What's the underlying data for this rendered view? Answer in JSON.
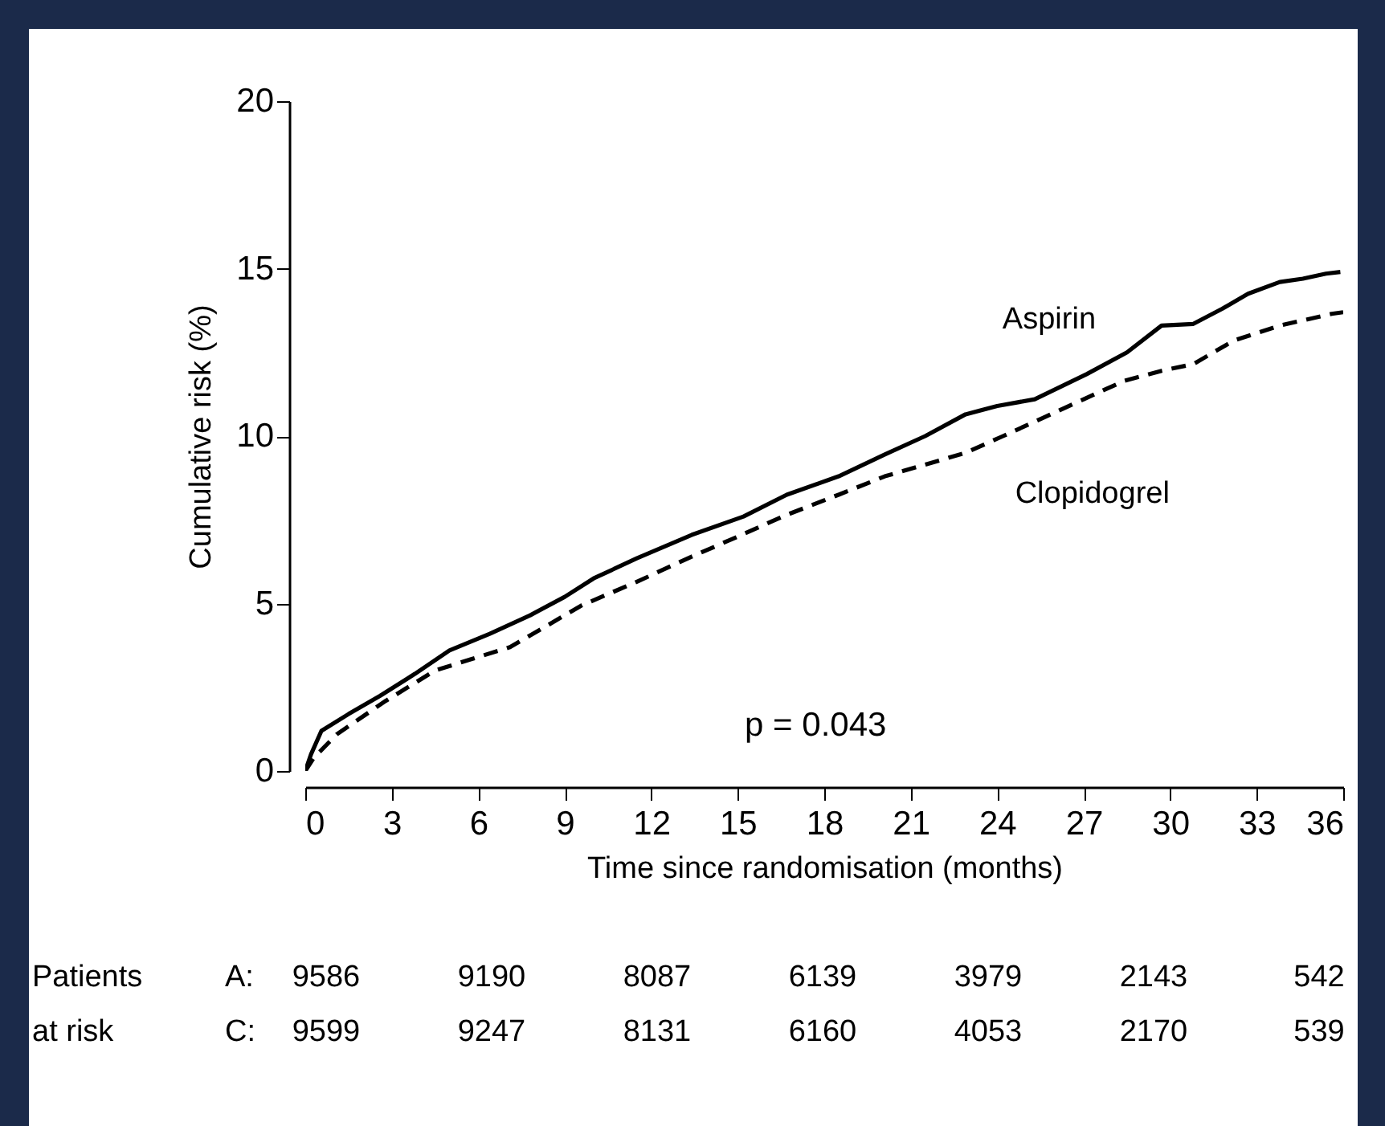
{
  "chart_data": {
    "type": "line",
    "xlabel": "Time since randomisation (months)",
    "ylabel": "Cumulative risk (%)",
    "xlim": [
      0,
      36
    ],
    "xticks": [
      0,
      3,
      6,
      9,
      12,
      15,
      18,
      21,
      24,
      27,
      30,
      33,
      36
    ],
    "ylim": [
      0,
      20
    ],
    "yticks": [
      0,
      5,
      10,
      15,
      20
    ],
    "grid": false,
    "marker": "none",
    "series": [
      {
        "name": "Aspirin",
        "color": "#000000",
        "line_style": "solid",
        "x": [
          0,
          0.2,
          0.56,
          1.5,
          2.6,
          3.8,
          5.0,
          6.4,
          7.8,
          9.0,
          10.0,
          11.5,
          13.4,
          15.2,
          16.7,
          18.5,
          20.1,
          21.5,
          22.9,
          24.0,
          25.3,
          27.1,
          28.5,
          29.7,
          30.8,
          31.8,
          32.7,
          33.8,
          34.6,
          35.4,
          35.9
        ],
        "values": [
          0,
          0.5,
          1.2,
          1.7,
          2.25,
          2.9,
          3.6,
          4.1,
          4.65,
          5.2,
          5.75,
          6.35,
          7.05,
          7.6,
          8.25,
          8.8,
          9.45,
          10.0,
          10.65,
          10.9,
          11.1,
          11.85,
          12.5,
          13.3,
          13.35,
          13.8,
          14.25,
          14.6,
          14.7,
          14.85,
          14.9
        ]
      },
      {
        "name": "Clopidogrel",
        "color": "#000000",
        "line_style": "dashed",
        "x": [
          0,
          0.3,
          1.1,
          2.8,
          4.5,
          5.8,
          7.1,
          8.4,
          9.6,
          11.5,
          13.4,
          15.0,
          16.7,
          18.5,
          20.1,
          21.5,
          22.9,
          24.2,
          25.6,
          27.0,
          28.4,
          29.7,
          30.8,
          32.2,
          33.8,
          35.6,
          36
        ],
        "values": [
          0,
          0.4,
          1.1,
          2.1,
          3.0,
          3.35,
          3.7,
          4.35,
          4.95,
          5.65,
          6.4,
          7.0,
          7.65,
          8.25,
          8.8,
          9.15,
          9.5,
          10.0,
          10.55,
          11.1,
          11.65,
          11.95,
          12.15,
          12.85,
          13.3,
          13.65,
          13.7
        ]
      }
    ],
    "annotations": [
      "p = 0.043",
      "Patients",
      "at risk",
      "A:",
      "9586",
      "9190",
      "8087",
      "6139",
      "3979",
      "2143",
      "542",
      "C:",
      "9599",
      "9247",
      "8131",
      "6160",
      "4053",
      "2170",
      "539"
    ]
  }
}
